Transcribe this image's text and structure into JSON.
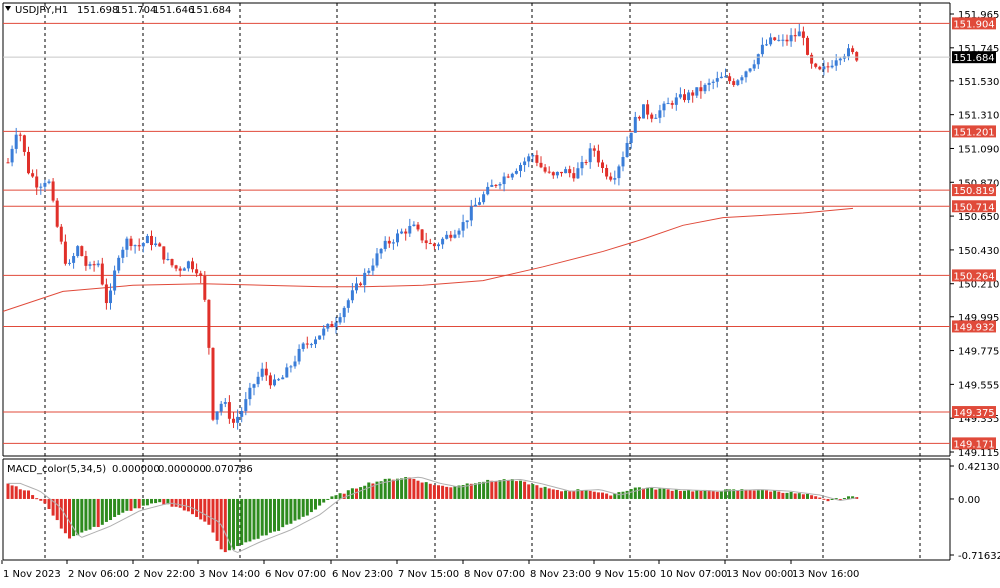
{
  "header": {
    "symbol_menu_icon": "triangle-down-icon",
    "symbol": "USDJPY,H1",
    "open": "151.698",
    "high": "151.704",
    "low": "151.646",
    "close": "151.684"
  },
  "macd_header": {
    "name": "MACD_color(5,34,5)",
    "v1": "0.000000",
    "v2": "0.000000",
    "v3": "0.070786"
  },
  "colors": {
    "bull": "#3a7dd8",
    "bear": "#e0302a",
    "levels": "#e04a3a",
    "ma": "#e04a3a",
    "macd_up": "#2e8b1e",
    "macd_down": "#e0302a",
    "signal": "#b0b0b0",
    "grid": "#000000"
  },
  "chart_data": [
    {
      "type": "candlestick",
      "symbol": "USDJPY",
      "timeframe": "H1",
      "y_ticks": [
        "151.965",
        "151.745",
        "151.530",
        "151.310",
        "151.090",
        "150.870",
        "150.650",
        "150.430",
        "150.210",
        "149.995",
        "149.775",
        "149.555",
        "149.335",
        "149.115"
      ],
      "ylim": [
        149.115,
        151.965
      ],
      "x_labels": [
        "1 Nov 2023",
        "2 Nov 06:00",
        "2 Nov 22:00",
        "3 Nov 14:00",
        "6 Nov 07:00",
        "6 Nov 23:00",
        "7 Nov 15:00",
        "8 Nov 07:00",
        "8 Nov 23:00",
        "9 Nov 15:00",
        "10 Nov 07:00",
        "13 Nov 00:00",
        "13 Nov 16:00"
      ],
      "current_price": "151.684",
      "levels": [
        "151.904",
        "151.201",
        "150.819",
        "150.714",
        "150.264",
        "149.932",
        "149.375",
        "149.171"
      ],
      "ma_series": [
        [
          0,
          150.03
        ],
        [
          60,
          150.16
        ],
        [
          130,
          150.2
        ],
        [
          200,
          150.21
        ],
        [
          260,
          150.2
        ],
        [
          320,
          150.19
        ],
        [
          360,
          150.19
        ],
        [
          420,
          150.2
        ],
        [
          480,
          150.23
        ],
        [
          540,
          150.32
        ],
        [
          600,
          150.42
        ],
        [
          640,
          150.5
        ],
        [
          680,
          150.59
        ],
        [
          720,
          150.64
        ],
        [
          800,
          150.67
        ],
        [
          850,
          150.7
        ]
      ],
      "key_points": [
        [
          0,
          151.0
        ],
        [
          10,
          151.25
        ],
        [
          20,
          150.95
        ],
        [
          30,
          150.85
        ],
        [
          40,
          150.9
        ],
        [
          50,
          150.55
        ],
        [
          60,
          150.3
        ],
        [
          70,
          150.45
        ],
        [
          80,
          150.3
        ],
        [
          90,
          150.35
        ],
        [
          100,
          150.05
        ],
        [
          110,
          150.4
        ],
        [
          120,
          150.5
        ],
        [
          130,
          150.45
        ],
        [
          140,
          150.5
        ],
        [
          150,
          150.45
        ],
        [
          160,
          150.35
        ],
        [
          170,
          150.3
        ],
        [
          180,
          150.35
        ],
        [
          190,
          150.3
        ],
        [
          195,
          150.2
        ],
        [
          200,
          149.9
        ],
        [
          205,
          149.35
        ],
        [
          215,
          149.45
        ],
        [
          225,
          149.3
        ],
        [
          235,
          149.4
        ],
        [
          245,
          149.55
        ],
        [
          255,
          149.65
        ],
        [
          265,
          149.55
        ],
        [
          275,
          149.6
        ],
        [
          285,
          149.7
        ],
        [
          295,
          149.8
        ],
        [
          305,
          149.85
        ],
        [
          315,
          149.9
        ],
        [
          325,
          149.95
        ],
        [
          335,
          150.05
        ],
        [
          345,
          150.15
        ],
        [
          355,
          150.25
        ],
        [
          365,
          150.35
        ],
        [
          375,
          150.45
        ],
        [
          385,
          150.5
        ],
        [
          395,
          150.55
        ],
        [
          405,
          150.58
        ],
        [
          415,
          150.5
        ],
        [
          425,
          150.45
        ],
        [
          435,
          150.5
        ],
        [
          445,
          150.55
        ],
        [
          455,
          150.6
        ],
        [
          465,
          150.7
        ],
        [
          475,
          150.78
        ],
        [
          485,
          150.85
        ],
        [
          495,
          150.9
        ],
        [
          505,
          150.95
        ],
        [
          515,
          151.0
        ],
        [
          525,
          151.05
        ],
        [
          535,
          150.95
        ],
        [
          545,
          150.9
        ],
        [
          555,
          150.95
        ],
        [
          565,
          150.92
        ],
        [
          575,
          150.98
        ],
        [
          585,
          151.1
        ],
        [
          595,
          150.95
        ],
        [
          605,
          150.9
        ],
        [
          615,
          151.05
        ],
        [
          625,
          151.25
        ],
        [
          635,
          151.35
        ],
        [
          645,
          151.3
        ],
        [
          655,
          151.35
        ],
        [
          665,
          151.4
        ],
        [
          675,
          151.42
        ],
        [
          685,
          151.45
        ],
        [
          695,
          151.48
        ],
        [
          705,
          151.52
        ],
        [
          715,
          151.55
        ],
        [
          725,
          151.52
        ],
        [
          735,
          151.58
        ],
        [
          745,
          151.65
        ],
        [
          755,
          151.75
        ],
        [
          765,
          151.8
        ],
        [
          775,
          151.78
        ],
        [
          785,
          151.82
        ],
        [
          795,
          151.85
        ],
        [
          800,
          151.65
        ],
        [
          810,
          151.58
        ],
        [
          820,
          151.62
        ],
        [
          830,
          151.7
        ],
        [
          840,
          151.72
        ],
        [
          850,
          151.68
        ]
      ],
      "macd_ticks": [
        "0.421304",
        "0.00",
        "-0.716327"
      ],
      "macd_ylim": [
        -0.716327,
        0.421304
      ]
    }
  ]
}
